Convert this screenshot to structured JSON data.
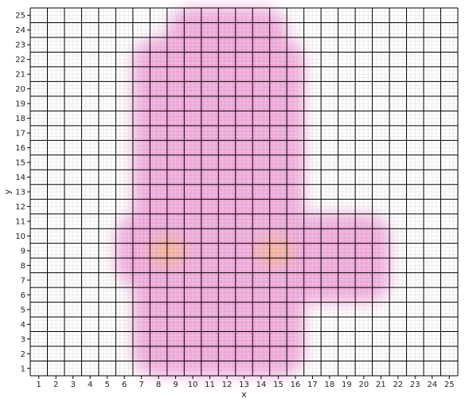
{
  "chart_data": {
    "type": "heatmap",
    "title": "",
    "xlabel": "x",
    "ylabel": "y",
    "xlim": [
      0.5,
      25.5
    ],
    "ylim": [
      0.5,
      25.5
    ],
    "x_ticks": [
      1,
      2,
      3,
      4,
      5,
      6,
      7,
      8,
      9,
      10,
      11,
      12,
      13,
      14,
      15,
      16,
      17,
      18,
      19,
      20,
      21,
      22,
      23,
      24,
      25
    ],
    "y_ticks": [
      1,
      2,
      3,
      4,
      5,
      6,
      7,
      8,
      9,
      10,
      11,
      12,
      13,
      14,
      15,
      16,
      17,
      18,
      19,
      20,
      21,
      22,
      23,
      24,
      25
    ],
    "grid": true,
    "colors": {
      "low": "#f7c6f2",
      "mid": "#f0a0d8",
      "high": "#f5b08a",
      "grid_major": "#000000",
      "grid_minor": "#dddddd"
    },
    "hotspots": [
      {
        "x": 8.5,
        "y": 9
      },
      {
        "x": 14.8,
        "y": 9
      }
    ],
    "regions": [
      {
        "x_range": [
          7,
          16
        ],
        "y_range": [
          1,
          23
        ],
        "level": "mid"
      },
      {
        "x_range": [
          9,
          15
        ],
        "y_range": [
          22,
          25
        ],
        "level": "mid"
      },
      {
        "x_range": [
          6,
          8
        ],
        "y_range": [
          7,
          11
        ],
        "level": "mid"
      },
      {
        "x_range": [
          16,
          21
        ],
        "y_range": [
          6,
          11
        ],
        "level": "mid"
      }
    ]
  }
}
